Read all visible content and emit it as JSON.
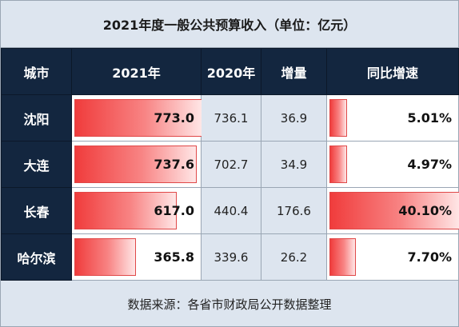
{
  "title": "2021年度一般公共预算收入（单位：亿元）",
  "footer": "数据来源：各省市财政局公开数据整理",
  "colors": {
    "header_bg": "#13263f",
    "body_bg": "#dde5ef",
    "bar": "#f03c3c"
  },
  "chart_data": {
    "type": "table",
    "columns": [
      "城市",
      "2021年",
      "2020年",
      "增量",
      "同比增速"
    ],
    "rows": [
      {
        "city": "沈阳",
        "y2021": "773.0",
        "y2020": "736.1",
        "increase": "36.9",
        "growth": "5.01%",
        "v2021": 773.0,
        "vgrowth": 5.01
      },
      {
        "city": "大连",
        "y2021": "737.6",
        "y2020": "702.7",
        "increase": "34.9",
        "growth": "4.97%",
        "v2021": 737.6,
        "vgrowth": 4.97
      },
      {
        "city": "长春",
        "y2021": "617.0",
        "y2020": "440.4",
        "increase": "176.6",
        "growth": "40.10%",
        "v2021": 617.0,
        "vgrowth": 40.1
      },
      {
        "city": "哈尔滨",
        "y2021": "365.8",
        "y2020": "339.6",
        "increase": "26.2",
        "growth": "7.70%",
        "v2021": 365.8,
        "vgrowth": 7.7
      }
    ]
  }
}
